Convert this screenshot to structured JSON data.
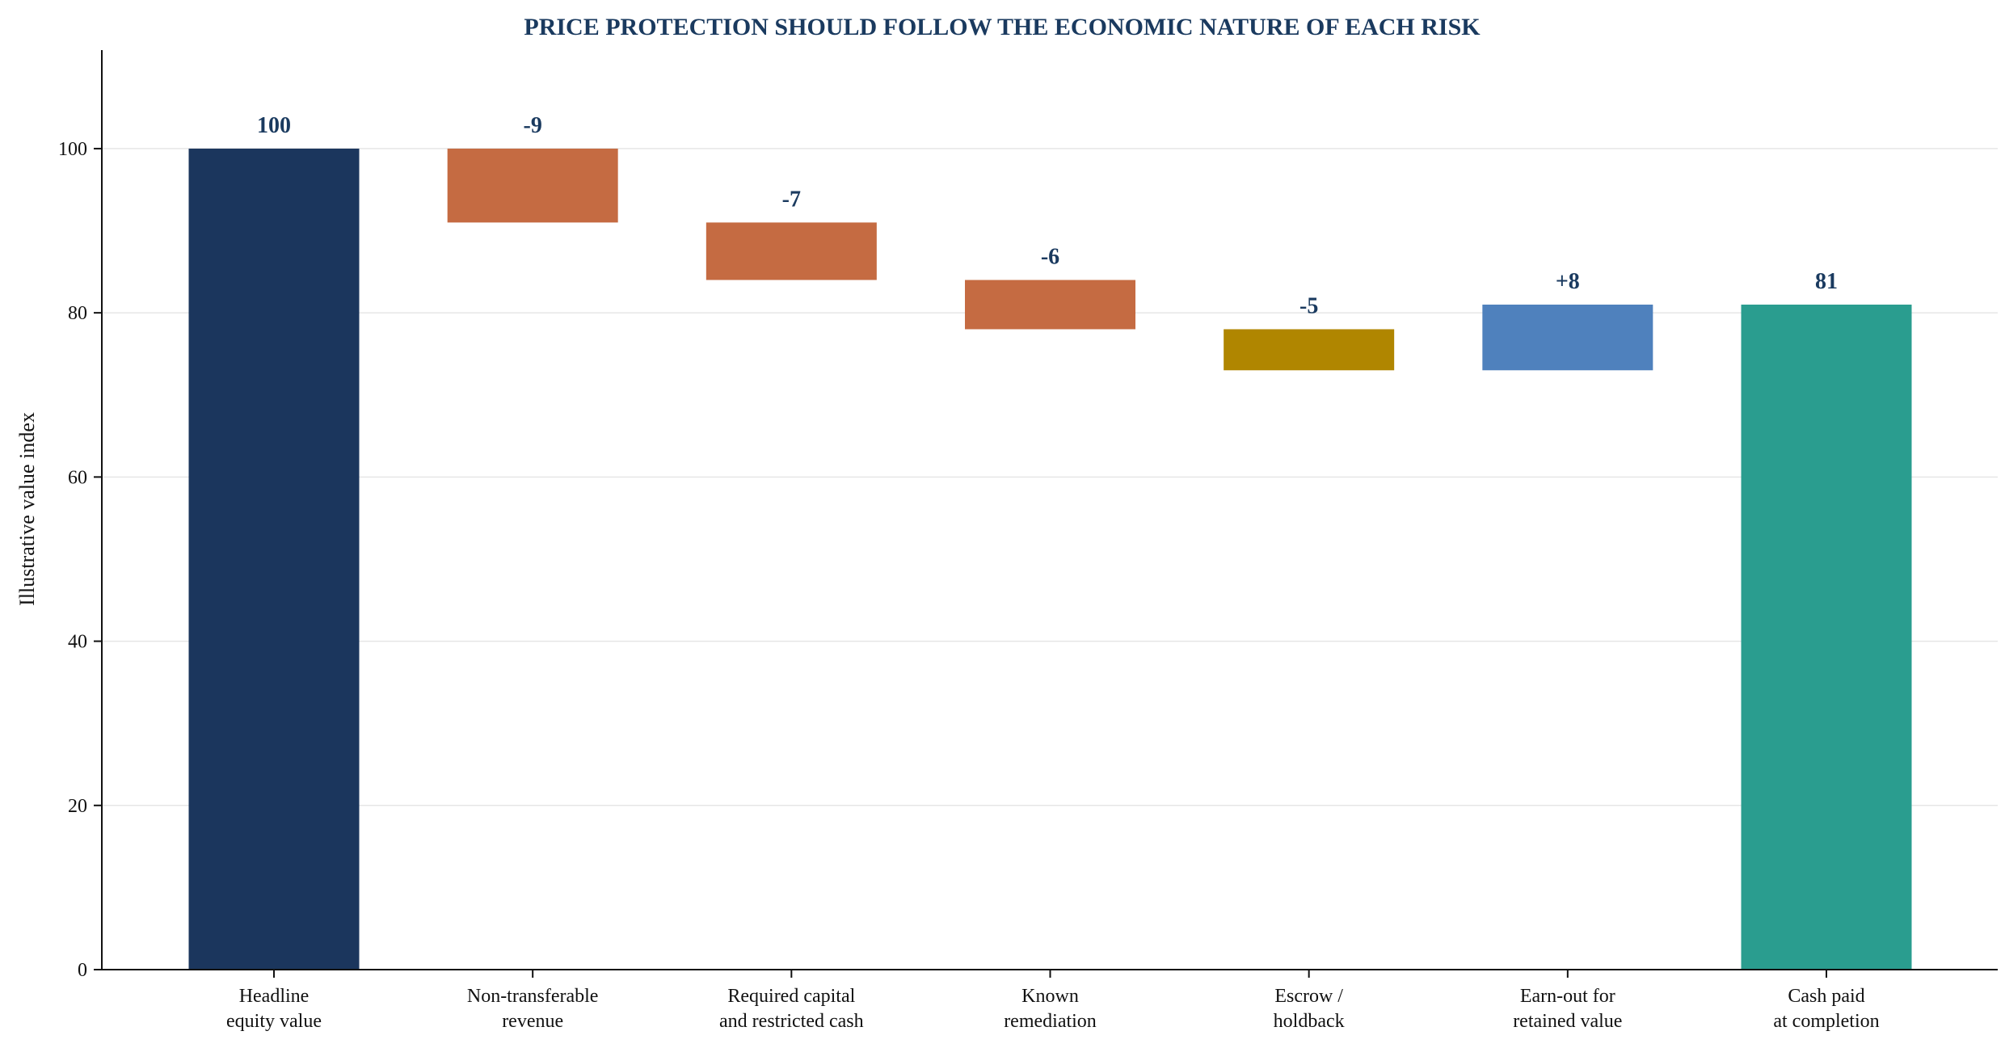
{
  "chart_data": {
    "type": "bar",
    "subtype": "waterfall",
    "title": "PRICE PROTECTION SHOULD FOLLOW THE ECONOMIC NATURE OF EACH RISK",
    "xlabel": "",
    "ylabel": "Illustrative value index",
    "ylim": [
      0,
      112
    ],
    "yticks": [
      0,
      20,
      40,
      60,
      80,
      100
    ],
    "grid": "horizontal",
    "legend": "none",
    "categories": [
      [
        "Headline",
        "equity value"
      ],
      [
        "Non-transferable",
        "revenue"
      ],
      [
        "Required capital",
        "and restricted cash"
      ],
      [
        "Known",
        "remediation"
      ],
      [
        "Escrow /",
        "holdback"
      ],
      [
        "Earn-out for",
        "retained value"
      ],
      [
        "Cash paid",
        "at completion"
      ]
    ],
    "bars": [
      {
        "kind": "total",
        "base": 0,
        "top": 100,
        "label": "100",
        "color": "#1b365d"
      },
      {
        "kind": "decrease",
        "base": 91,
        "top": 100,
        "label": "-9",
        "color": "#c56b42"
      },
      {
        "kind": "decrease",
        "base": 84,
        "top": 91,
        "label": "-7",
        "color": "#c56b42"
      },
      {
        "kind": "decrease",
        "base": 78,
        "top": 84,
        "label": "-6",
        "color": "#c56b42"
      },
      {
        "kind": "decrease",
        "base": 73,
        "top": 78,
        "label": "-5",
        "color": "#b08600"
      },
      {
        "kind": "increase",
        "base": 73,
        "top": 81,
        "label": "+8",
        "color": "#4f81bd"
      },
      {
        "kind": "total",
        "base": 0,
        "top": 81,
        "label": "81",
        "color": "#2a9d8f"
      }
    ]
  }
}
